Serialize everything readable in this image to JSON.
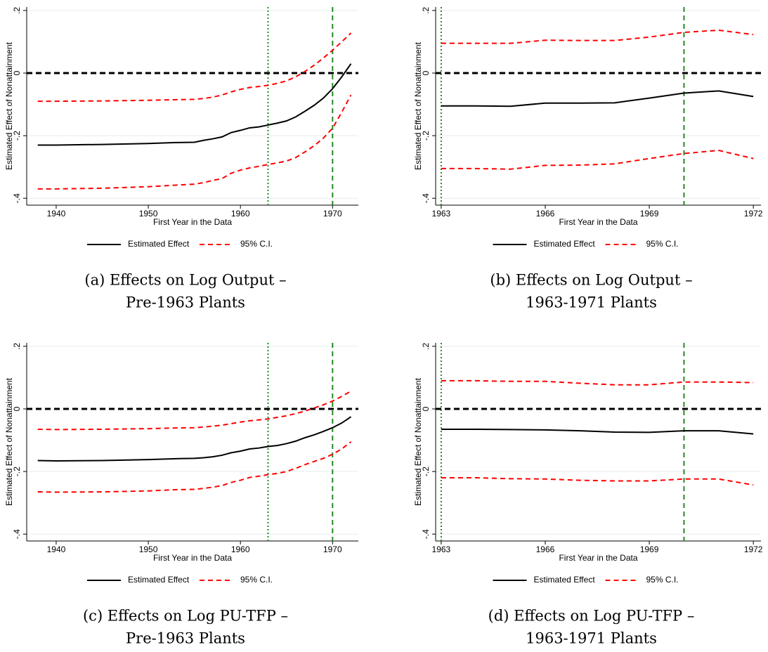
{
  "chart_data": [
    {
      "type": "line",
      "caption": [
        "(a) Effects on Log Output –",
        "Pre-1963 Plants"
      ],
      "x_label": "First Year in the Data",
      "y_label": "Estimated Effect of Nonattainment",
      "x": [
        1938,
        1940,
        1945,
        1950,
        1953,
        1955,
        1956,
        1957,
        1958,
        1959,
        1960,
        1961,
        1962,
        1963,
        1964,
        1965,
        1966,
        1967,
        1968,
        1969,
        1970,
        1971,
        1972
      ],
      "series": [
        {
          "name": "Estimated Effect",
          "color": "#000000",
          "dash": "solid",
          "values": [
            -0.23,
            -0.23,
            -0.228,
            -0.225,
            -0.222,
            -0.221,
            -0.215,
            -0.21,
            -0.204,
            -0.19,
            -0.183,
            -0.175,
            -0.172,
            -0.166,
            -0.16,
            -0.153,
            -0.14,
            -0.122,
            -0.103,
            -0.08,
            -0.05,
            -0.012,
            0.03
          ]
        },
        {
          "name": "95% C.I.",
          "color": "#ff0000",
          "dash": "dashed",
          "upper": [
            -0.09,
            -0.09,
            -0.089,
            -0.087,
            -0.085,
            -0.084,
            -0.081,
            -0.077,
            -0.07,
            -0.06,
            -0.052,
            -0.046,
            -0.043,
            -0.039,
            -0.033,
            -0.025,
            -0.012,
            0.005,
            0.025,
            0.048,
            0.073,
            0.1,
            0.128
          ],
          "lower": [
            -0.37,
            -0.37,
            -0.368,
            -0.363,
            -0.358,
            -0.355,
            -0.35,
            -0.343,
            -0.337,
            -0.32,
            -0.31,
            -0.303,
            -0.298,
            -0.292,
            -0.287,
            -0.281,
            -0.27,
            -0.252,
            -0.232,
            -0.208,
            -0.176,
            -0.125,
            -0.07
          ]
        }
      ],
      "xlim": [
        1936.8,
        1972.8
      ],
      "ylim": [
        -0.422,
        0.211
      ],
      "xticks": [
        1940,
        1950,
        1960,
        1970
      ],
      "yticks": [
        {
          "value": 0.2,
          "label": ".2"
        },
        0,
        {
          "value": -0.2,
          "label": "-.2"
        },
        {
          "value": -0.4,
          "label": "-.4"
        }
      ],
      "vlines": [
        {
          "value": 1963,
          "style": "dotted",
          "color": "#228b22"
        },
        {
          "value": 1970,
          "style": "dashed",
          "color": "#228b22"
        }
      ],
      "hline": 0,
      "grid": true
    },
    {
      "type": "line",
      "caption": [
        "(b) Effects on Log Output –",
        "1963-1971 Plants"
      ],
      "x_label": "First Year in the Data",
      "y_label": "Estimated Effect of Nonattainment",
      "x": [
        1963,
        1964,
        1965,
        1966,
        1967,
        1968,
        1969,
        1970,
        1971,
        1972
      ],
      "series": [
        {
          "name": "Estimated Effect",
          "color": "#000000",
          "dash": "solid",
          "values": [
            -0.105,
            -0.105,
            -0.106,
            -0.096,
            -0.096,
            -0.095,
            -0.08,
            -0.064,
            -0.057,
            -0.075
          ]
        },
        {
          "name": "95% C.I.",
          "color": "#ff0000",
          "dash": "dashed",
          "upper": [
            0.095,
            0.095,
            0.095,
            0.105,
            0.104,
            0.104,
            0.115,
            0.13,
            0.137,
            0.123
          ],
          "lower": [
            -0.305,
            -0.305,
            -0.307,
            -0.295,
            -0.294,
            -0.29,
            -0.273,
            -0.257,
            -0.247,
            -0.273
          ]
        }
      ],
      "xlim": [
        1962.84,
        1972.22
      ],
      "ylim": [
        -0.422,
        0.211
      ],
      "xticks": [
        1963,
        1966,
        1969,
        1972
      ],
      "yticks": [
        {
          "value": 0.2,
          "label": ".2"
        },
        0,
        {
          "value": -0.2,
          "label": "-.2"
        },
        {
          "value": -0.4,
          "label": "-.4"
        }
      ],
      "vlines": [
        {
          "value": 1963,
          "style": "dotted",
          "color": "#228b22"
        },
        {
          "value": 1970,
          "style": "dashed",
          "color": "#228b22"
        }
      ],
      "hline": 0,
      "grid": true
    },
    {
      "type": "line",
      "caption": [
        "(c) Effects on Log PU-TFP –",
        "Pre-1963 Plants"
      ],
      "x_label": "First Year in the Data",
      "y_label": "Estimated Effect of Nonattainment",
      "x": [
        1938,
        1940,
        1945,
        1950,
        1953,
        1955,
        1956,
        1957,
        1958,
        1959,
        1960,
        1961,
        1962,
        1963,
        1964,
        1965,
        1966,
        1967,
        1968,
        1969,
        1970,
        1971,
        1972
      ],
      "series": [
        {
          "name": "Estimated Effect",
          "color": "#000000",
          "dash": "solid",
          "values": [
            -0.165,
            -0.166,
            -0.165,
            -0.162,
            -0.159,
            -0.158,
            -0.156,
            -0.153,
            -0.148,
            -0.14,
            -0.135,
            -0.128,
            -0.125,
            -0.12,
            -0.117,
            -0.111,
            -0.103,
            -0.092,
            -0.083,
            -0.072,
            -0.06,
            -0.045,
            -0.025
          ]
        },
        {
          "name": "95% C.I.",
          "color": "#ff0000",
          "dash": "dashed",
          "upper": [
            -0.065,
            -0.066,
            -0.065,
            -0.063,
            -0.061,
            -0.06,
            -0.058,
            -0.055,
            -0.052,
            -0.047,
            -0.042,
            -0.038,
            -0.035,
            -0.032,
            -0.027,
            -0.022,
            -0.015,
            -0.007,
            0.003,
            0.013,
            0.025,
            0.04,
            0.057
          ],
          "lower": [
            -0.265,
            -0.266,
            -0.265,
            -0.262,
            -0.258,
            -0.257,
            -0.254,
            -0.25,
            -0.245,
            -0.235,
            -0.228,
            -0.219,
            -0.215,
            -0.21,
            -0.206,
            -0.2,
            -0.19,
            -0.178,
            -0.168,
            -0.158,
            -0.145,
            -0.128,
            -0.105
          ]
        }
      ],
      "xlim": [
        1936.8,
        1972.8
      ],
      "ylim": [
        -0.422,
        0.211
      ],
      "xticks": [
        1940,
        1950,
        1960,
        1970
      ],
      "yticks": [
        {
          "value": 0.2,
          "label": ".2"
        },
        0,
        {
          "value": -0.2,
          "label": "-.2"
        },
        {
          "value": -0.4,
          "label": "-.4"
        }
      ],
      "vlines": [
        {
          "value": 1963,
          "style": "dotted",
          "color": "#228b22"
        },
        {
          "value": 1970,
          "style": "dashed",
          "color": "#228b22"
        }
      ],
      "hline": 0,
      "grid": true
    },
    {
      "type": "line",
      "caption": [
        "(d) Effects on Log PU-TFP –",
        "1963-1971 Plants"
      ],
      "x_label": "First Year in the Data",
      "y_label": "Estimated Effect of Nonattainment",
      "x": [
        1963,
        1964,
        1965,
        1966,
        1967,
        1968,
        1969,
        1970,
        1971,
        1972
      ],
      "series": [
        {
          "name": "Estimated Effect",
          "color": "#000000",
          "dash": "solid",
          "values": [
            -0.065,
            -0.065,
            -0.066,
            -0.067,
            -0.07,
            -0.074,
            -0.075,
            -0.07,
            -0.07,
            -0.08
          ]
        },
        {
          "name": "95% C.I.",
          "color": "#ff0000",
          "dash": "dashed",
          "upper": [
            0.09,
            0.09,
            0.088,
            0.088,
            0.082,
            0.077,
            0.077,
            0.086,
            0.086,
            0.084
          ],
          "lower": [
            -0.22,
            -0.22,
            -0.223,
            -0.224,
            -0.228,
            -0.23,
            -0.23,
            -0.224,
            -0.224,
            -0.243
          ]
        }
      ],
      "xlim": [
        1962.84,
        1972.22
      ],
      "ylim": [
        -0.422,
        0.211
      ],
      "xticks": [
        1963,
        1966,
        1969,
        1972
      ],
      "yticks": [
        {
          "value": 0.2,
          "label": ".2"
        },
        0,
        {
          "value": -0.2,
          "label": "-.2"
        },
        {
          "value": -0.4,
          "label": "-.4"
        }
      ],
      "vlines": [
        {
          "value": 1963,
          "style": "dotted",
          "color": "#228b22"
        },
        {
          "value": 1970,
          "style": "dashed",
          "color": "#228b22"
        }
      ],
      "hline": 0,
      "grid": true
    }
  ]
}
